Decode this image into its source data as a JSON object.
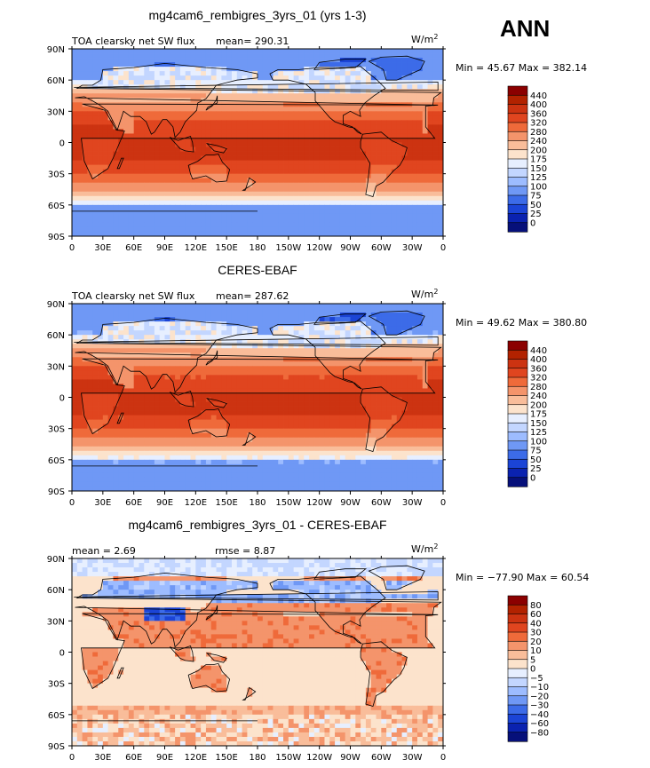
{
  "season": "ANN",
  "chart_data": [
    {
      "type": "heatmap",
      "title": "mg4cam6_rembigres_3yrs_01 (yrs 1-3)",
      "left_label": "TOA clearsky net SW flux",
      "mean_text": "mean= 290.31",
      "units": "W/m",
      "units_sup": "2",
      "min_max_text": "Min =  45.67 Max = 382.14",
      "x_ticks": [
        "0",
        "30E",
        "60E",
        "90E",
        "120E",
        "150E",
        "180",
        "150W",
        "120W",
        "90W",
        "60W",
        "30W",
        "0"
      ],
      "y_ticks": [
        "90N",
        "60N",
        "30N",
        "0",
        "30S",
        "60S",
        "90S"
      ],
      "colorbar_levels": [
        "440",
        "400",
        "360",
        "320",
        "280",
        "240",
        "200",
        "175",
        "150",
        "125",
        "100",
        "75",
        "50",
        "25",
        "0"
      ],
      "colorbar_colors": [
        "#8b0000",
        "#b22200",
        "#cc3311",
        "#e0451f",
        "#ef6a3a",
        "#f4946b",
        "#f9bd9a",
        "#fce3cc",
        "#e7efff",
        "#c3d6ff",
        "#9dbcff",
        "#6f98f5",
        "#3c6be8",
        "#1b44d6",
        "#0a22b0",
        "#06107a"
      ],
      "field_model": "model_abs"
    },
    {
      "type": "heatmap",
      "title": "CERES-EBAF",
      "left_label": "TOA clearsky net SW flux",
      "mean_text": "mean= 287.62",
      "units": "W/m",
      "units_sup": "2",
      "min_max_text": "Min =  49.62 Max = 380.80",
      "x_ticks": [
        "0",
        "30E",
        "60E",
        "90E",
        "120E",
        "150E",
        "180",
        "150W",
        "120W",
        "90W",
        "60W",
        "30W",
        "0"
      ],
      "y_ticks": [
        "90N",
        "60N",
        "30N",
        "0",
        "30S",
        "60S",
        "90S"
      ],
      "colorbar_levels": [
        "440",
        "400",
        "360",
        "320",
        "280",
        "240",
        "200",
        "175",
        "150",
        "125",
        "100",
        "75",
        "50",
        "25",
        "0"
      ],
      "colorbar_colors": [
        "#8b0000",
        "#b22200",
        "#cc3311",
        "#e0451f",
        "#ef6a3a",
        "#f4946b",
        "#f9bd9a",
        "#fce3cc",
        "#e7efff",
        "#c3d6ff",
        "#9dbcff",
        "#6f98f5",
        "#3c6be8",
        "#1b44d6",
        "#0a22b0",
        "#06107a"
      ],
      "field_model": "obs_abs"
    },
    {
      "type": "heatmap",
      "title": "mg4cam6_rembigres_3yrs_01 - CERES-EBAF",
      "left_label": "mean =     2.69",
      "mean_text": "rmse =     8.87",
      "units": "W/m",
      "units_sup": "2",
      "min_max_text": "Min = −77.90 Max =  60.54",
      "x_ticks": [
        "0",
        "30E",
        "60E",
        "90E",
        "120E",
        "150E",
        "180",
        "150W",
        "120W",
        "90W",
        "60W",
        "30W",
        "0"
      ],
      "y_ticks": [
        "90N",
        "60N",
        "30N",
        "0",
        "30S",
        "60S",
        "90S"
      ],
      "colorbar_levels": [
        "80",
        "60",
        "40",
        "30",
        "20",
        "10",
        "5",
        "0",
        "−5",
        "−10",
        "−20",
        "−30",
        "−40",
        "−60",
        "−80"
      ],
      "colorbar_colors": [
        "#8b0000",
        "#b22200",
        "#cc3311",
        "#e0451f",
        "#ef6a3a",
        "#f4946b",
        "#f9bd9a",
        "#fce3cc",
        "#e7efff",
        "#c3d6ff",
        "#9dbcff",
        "#6f98f5",
        "#3c6be8",
        "#1b44d6",
        "#0a22b0",
        "#06107a"
      ],
      "field_model": "diff"
    }
  ]
}
